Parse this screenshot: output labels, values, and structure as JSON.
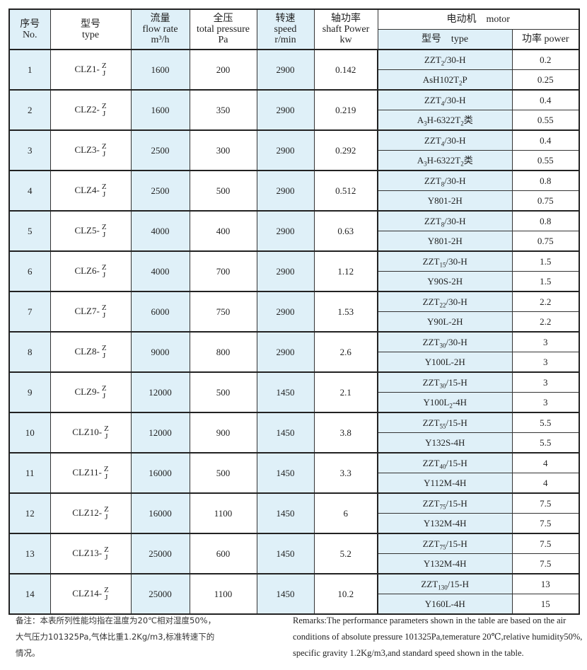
{
  "header": {
    "no": [
      "序号",
      "No."
    ],
    "type": [
      "型号",
      "type"
    ],
    "flow": [
      "流量",
      "flow rate",
      "m³/h"
    ],
    "pressure": [
      "全压",
      "total pressure",
      "Pa"
    ],
    "speed": [
      "转速",
      "speed",
      "r/min"
    ],
    "shaft": [
      "轴功率",
      "shaft Power",
      "kw"
    ],
    "motor": "电动机　motor",
    "motor_type": "型号　type",
    "motor_power": "功率  power"
  },
  "rows": [
    {
      "no": "1",
      "model": "CLZ1-",
      "sub_top": "Z",
      "sub_bot": "J",
      "flow": "1600",
      "pressure": "200",
      "speed": "2900",
      "shaft": "0.142",
      "motors": [
        {
          "parts": [
            "ZZT",
            "2",
            "/30-H"
          ],
          "power": "0.2"
        },
        {
          "parts": [
            "AsH102T",
            "2",
            "P"
          ],
          "power": "0.25"
        }
      ]
    },
    {
      "no": "2",
      "model": "CLZ2-",
      "sub_top": "Z",
      "sub_bot": "J",
      "flow": "1600",
      "pressure": "350",
      "speed": "2900",
      "shaft": "0.219",
      "motors": [
        {
          "parts": [
            "ZZT",
            "4",
            "/30-H"
          ],
          "power": "0.4"
        },
        {
          "parts": [
            "A",
            "3",
            "H-6322T",
            "2",
            "类"
          ],
          "power": "0.55"
        }
      ]
    },
    {
      "no": "3",
      "model": "CLZ3-",
      "sub_top": "Z",
      "sub_bot": "J",
      "flow": "2500",
      "pressure": "300",
      "speed": "2900",
      "shaft": "0.292",
      "motors": [
        {
          "parts": [
            "ZZT",
            "4",
            "/30-H"
          ],
          "power": "0.4"
        },
        {
          "parts": [
            "A",
            "3",
            "H-6322T",
            "2",
            "类"
          ],
          "power": "0.55"
        }
      ]
    },
    {
      "no": "4",
      "model": "CLZ4-",
      "sub_top": "Z",
      "sub_bot": "J",
      "flow": "2500",
      "pressure": "500",
      "speed": "2900",
      "shaft": "0.512",
      "motors": [
        {
          "parts": [
            "ZZT",
            "8",
            "/30-H"
          ],
          "power": "0.8"
        },
        {
          "parts": [
            "Y801-2H"
          ],
          "power": "0.75"
        }
      ]
    },
    {
      "no": "5",
      "model": "CLZ5-",
      "sub_top": "Z",
      "sub_bot": "J",
      "flow": "4000",
      "pressure": "400",
      "speed": "2900",
      "shaft": "0.63",
      "motors": [
        {
          "parts": [
            "ZZT",
            "8",
            "/30-H"
          ],
          "power": "0.8"
        },
        {
          "parts": [
            "Y801-2H"
          ],
          "power": "0.75"
        }
      ]
    },
    {
      "no": "6",
      "model": "CLZ6-",
      "sub_top": "Z",
      "sub_bot": "J",
      "flow": "4000",
      "pressure": "700",
      "speed": "2900",
      "shaft": "1.12",
      "motors": [
        {
          "parts": [
            "ZZT",
            "15",
            "/30-H"
          ],
          "power": "1.5"
        },
        {
          "parts": [
            "Y90S-2H"
          ],
          "power": "1.5"
        }
      ]
    },
    {
      "no": "7",
      "model": "CLZ7-",
      "sub_top": "Z",
      "sub_bot": "J",
      "flow": "6000",
      "pressure": "750",
      "speed": "2900",
      "shaft": "1.53",
      "motors": [
        {
          "parts": [
            "ZZT",
            "22",
            "/30-H"
          ],
          "power": "2.2"
        },
        {
          "parts": [
            "Y90L-2H"
          ],
          "power": "2.2"
        }
      ]
    },
    {
      "no": "8",
      "model": "CLZ8-",
      "sub_top": "Z",
      "sub_bot": "J",
      "flow": "9000",
      "pressure": "800",
      "speed": "2900",
      "shaft": "2.6",
      "motors": [
        {
          "parts": [
            "ZZT",
            "30",
            "/30-H"
          ],
          "power": "3"
        },
        {
          "parts": [
            "Y100L-2H"
          ],
          "power": "3"
        }
      ]
    },
    {
      "no": "9",
      "model": "CLZ9-",
      "sub_top": "Z",
      "sub_bot": "J",
      "flow": "12000",
      "pressure": "500",
      "speed": "1450",
      "shaft": "2.1",
      "motors": [
        {
          "parts": [
            "ZZT",
            "30",
            "/15-H"
          ],
          "power": "3"
        },
        {
          "parts": [
            "Y100L",
            "2",
            "-4H"
          ],
          "power": "3"
        }
      ]
    },
    {
      "no": "10",
      "model": "CLZ10-",
      "sub_top": "Z",
      "sub_bot": "J",
      "flow": "12000",
      "pressure": "900",
      "speed": "1450",
      "shaft": "3.8",
      "motors": [
        {
          "parts": [
            "ZZT",
            "55",
            "/15-H"
          ],
          "power": "5.5"
        },
        {
          "parts": [
            "Y132S-4H"
          ],
          "power": "5.5"
        }
      ]
    },
    {
      "no": "11",
      "model": "CLZ11-",
      "sub_top": "Z",
      "sub_bot": "J",
      "flow": "16000",
      "pressure": "500",
      "speed": "1450",
      "shaft": "3.3",
      "motors": [
        {
          "parts": [
            "ZZT",
            "40",
            "/15-H"
          ],
          "power": "4"
        },
        {
          "parts": [
            "Y112M-4H"
          ],
          "power": "4"
        }
      ]
    },
    {
      "no": "12",
      "model": "CLZ12-",
      "sub_top": "Z",
      "sub_bot": "J",
      "flow": "16000",
      "pressure": "1100",
      "speed": "1450",
      "shaft": "6",
      "motors": [
        {
          "parts": [
            "ZZT",
            "75",
            "/15-H"
          ],
          "power": "7.5"
        },
        {
          "parts": [
            "Y132M-4H"
          ],
          "power": "7.5"
        }
      ]
    },
    {
      "no": "13",
      "model": "CLZ13-",
      "sub_top": "Z",
      "sub_bot": "J",
      "flow": "25000",
      "pressure": "600",
      "speed": "1450",
      "shaft": "5.2",
      "motors": [
        {
          "parts": [
            "ZZT",
            "75",
            "/15-H"
          ],
          "power": "7.5"
        },
        {
          "parts": [
            "Y132M-4H"
          ],
          "power": "7.5"
        }
      ]
    },
    {
      "no": "14",
      "model": "CLZ14-",
      "sub_top": "Z",
      "sub_bot": "J",
      "flow": "25000",
      "pressure": "1100",
      "speed": "1450",
      "shaft": "10.2",
      "motors": [
        {
          "parts": [
            "ZZT",
            "130",
            "/15-H"
          ],
          "power": "13"
        },
        {
          "parts": [
            "Y160L-4H"
          ],
          "power": "15"
        }
      ]
    }
  ],
  "notes": {
    "cn": [
      "备注：本表所列性能均指在温度为20℃相对湿度50%，",
      "大气压力101325Pa,气体比重1.2Kg/m3,标准转速下的",
      "情况。"
    ],
    "en": [
      "Remarks:The performance parameters shown in the table are based on the air",
      "conditions of absolute pressure 101325Pa,temerature 20℃,relative humidity50%,",
      "specific gravity 1.2Kg/m3,and standard speed shown in the table."
    ]
  },
  "colors": {
    "highlight": "#dff0f8",
    "border": "#222222"
  }
}
